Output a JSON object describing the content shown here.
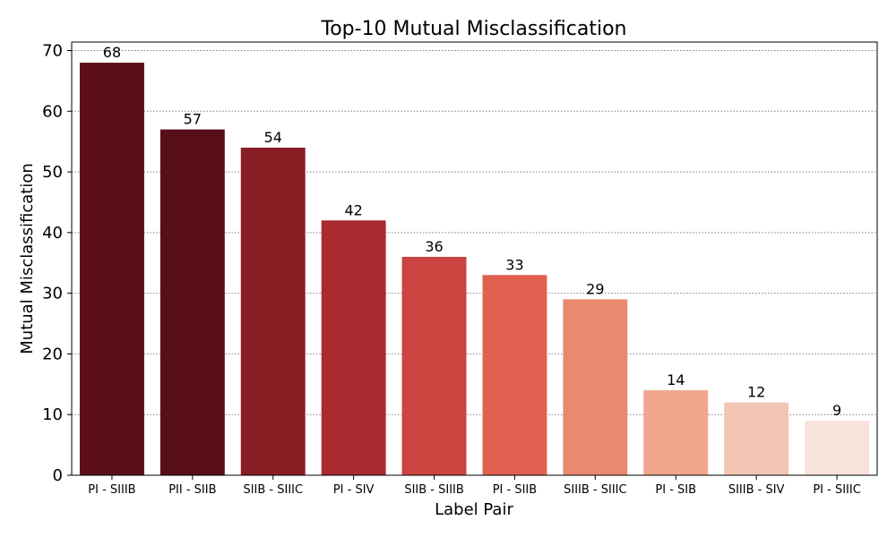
{
  "chart_data": {
    "type": "bar",
    "title": "Top-10 Mutual Misclassification",
    "xlabel": "Label Pair",
    "ylabel": "Mutual Misclassification",
    "categories": [
      "PI - SIIIB",
      "PII - SIIB",
      "SIIB - SIIIC",
      "PI - SIV",
      "SIIB - SIIIB",
      "PI - SIIB",
      "SIIIB - SIIIC",
      "PI - SIB",
      "SIIIB - SIV",
      "PI - SIIIC"
    ],
    "values": [
      68,
      57,
      54,
      42,
      36,
      33,
      29,
      14,
      12,
      9
    ],
    "ylim": [
      0,
      71.4
    ],
    "yticks": [
      0,
      10,
      20,
      30,
      40,
      50,
      60,
      70
    ],
    "grid": "horizontal dotted",
    "colors": [
      "#5c0f1a",
      "#570e18",
      "#881e24",
      "#a92a2f",
      "#cb4440",
      "#e1604f",
      "#e98a70",
      "#efa68c",
      "#f3c6b4",
      "#f8e3da"
    ]
  }
}
